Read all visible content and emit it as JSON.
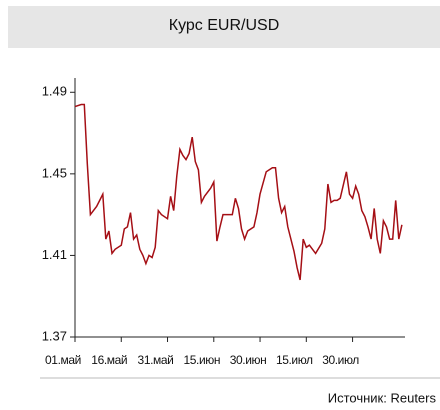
{
  "chart_data": {
    "type": "line",
    "title": "Курс EUR/USD",
    "source": "Источник: Reuters",
    "x": [
      0,
      2,
      3,
      4,
      5,
      7,
      8,
      9,
      10,
      11,
      12,
      13,
      15,
      16,
      17,
      18,
      19,
      20,
      21,
      22,
      23,
      24,
      25,
      26,
      27,
      28,
      30,
      31,
      32,
      33,
      34,
      35,
      36,
      37,
      38,
      39,
      40,
      41,
      42,
      44,
      45,
      46,
      47,
      48,
      49,
      51,
      52,
      53,
      54,
      55,
      56,
      58,
      59,
      60,
      62,
      63,
      64,
      65,
      66,
      67,
      68,
      69,
      71,
      72,
      73,
      74,
      75,
      76,
      77,
      78,
      80,
      81,
      82,
      83,
      84,
      85,
      86,
      88,
      89,
      90,
      91,
      92,
      93,
      94,
      95,
      96,
      97,
      98,
      99,
      100,
      101,
      102,
      103,
      104,
      105,
      106
    ],
    "series": [
      {
        "name": "EUR/USD",
        "color": "#a50f15",
        "values": [
          1.483,
          1.484,
          1.484,
          1.455,
          1.43,
          1.434,
          1.437,
          1.44,
          1.418,
          1.422,
          1.411,
          1.413,
          1.415,
          1.423,
          1.424,
          1.431,
          1.418,
          1.42,
          1.413,
          1.41,
          1.406,
          1.41,
          1.409,
          1.414,
          1.432,
          1.43,
          1.428,
          1.439,
          1.432,
          1.449,
          1.462,
          1.459,
          1.457,
          1.46,
          1.468,
          1.456,
          1.452,
          1.436,
          1.439,
          1.443,
          1.446,
          1.417,
          1.424,
          1.43,
          1.43,
          1.43,
          1.438,
          1.433,
          1.423,
          1.418,
          1.422,
          1.424,
          1.431,
          1.44,
          1.451,
          1.452,
          1.453,
          1.453,
          1.438,
          1.431,
          1.434,
          1.424,
          1.412,
          1.404,
          1.398,
          1.418,
          1.414,
          1.415,
          1.413,
          1.411,
          1.416,
          1.423,
          1.445,
          1.436,
          1.437,
          1.437,
          1.438,
          1.451,
          1.44,
          1.438,
          1.444,
          1.44,
          1.432,
          1.429,
          1.424,
          1.418,
          1.433,
          1.418,
          1.411,
          1.427,
          1.424,
          1.418,
          1.418,
          1.437,
          1.418,
          1.425
        ]
      }
    ],
    "xlim": [
      0,
      107
    ],
    "xticks": [
      {
        "value": 0,
        "label": "01.май"
      },
      {
        "value": 15,
        "label": "16.май"
      },
      {
        "value": 30,
        "label": "31.май"
      },
      {
        "value": 45,
        "label": "15.июн"
      },
      {
        "value": 60,
        "label": "30.июн"
      },
      {
        "value": 75,
        "label": "15.июл"
      },
      {
        "value": 90,
        "label": "30.июл"
      }
    ],
    "ylim": [
      1.37,
      1.497
    ],
    "yticks": [
      1.37,
      1.41,
      1.45,
      1.49
    ]
  }
}
